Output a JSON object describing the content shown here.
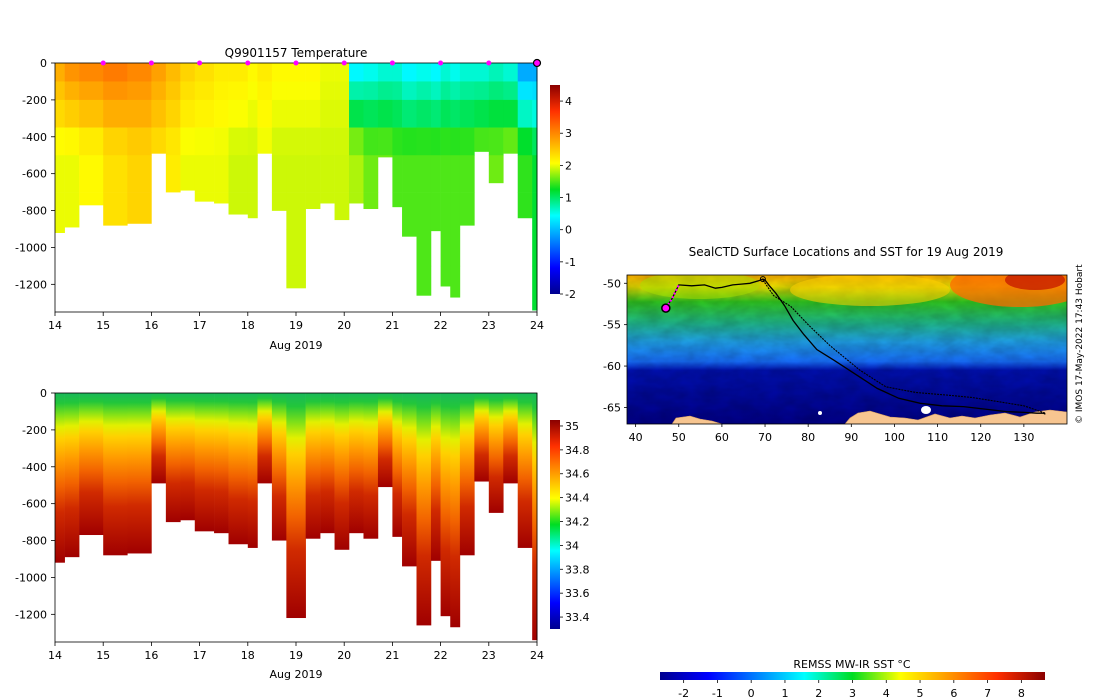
{
  "chart_data": [
    {
      "type": "heatmap",
      "title": "Q9901157  Temperature",
      "xlabel": "Aug 2019",
      "xlim": [
        14,
        24
      ],
      "x_ticks": [
        "14",
        "15",
        "16",
        "17",
        "18",
        "19",
        "20",
        "21",
        "22",
        "23",
        "24"
      ],
      "ylim": [
        -1350,
        0
      ],
      "y_ticks": [
        "0",
        "-200",
        "-400",
        "-600",
        "-800",
        "-1000",
        "-1200"
      ],
      "colorbar_ticks": [
        "4",
        "3",
        "2",
        "1",
        "0",
        "-1",
        "-2"
      ],
      "colorbar_range": [
        -2,
        4.5
      ],
      "surface_markers_x": [
        15,
        16,
        17,
        18,
        19,
        20,
        21,
        22,
        23
      ],
      "profile_x": [
        14.0,
        14.2,
        14.5,
        15.0,
        15.5,
        16.0,
        16.3,
        16.6,
        16.9,
        17.3,
        17.6,
        18.0,
        18.2,
        18.5,
        18.8,
        19.2,
        19.5,
        19.8,
        20.1,
        20.4,
        20.7,
        21.0,
        21.2,
        21.5,
        21.8,
        22.0,
        22.2,
        22.4,
        22.7,
        23.0,
        23.3,
        23.6,
        23.9,
        24.0
      ],
      "profile_max_depth": [
        -920,
        -890,
        -770,
        -880,
        -870,
        -490,
        -700,
        -690,
        -750,
        -760,
        -820,
        -840,
        -490,
        -800,
        -1220,
        -790,
        -760,
        -850,
        -760,
        -790,
        -510,
        -780,
        -940,
        -1260,
        -910,
        -1210,
        -1270,
        -880,
        -480,
        -650,
        -490,
        -840,
        -1340,
        -1340
      ],
      "surface_value": [
        2.7,
        2.9,
        3.0,
        3.1,
        3.0,
        2.8,
        2.6,
        2.4,
        2.3,
        2.2,
        2.2,
        2.1,
        2.2,
        2.1,
        2.1,
        2.1,
        2.0,
        2.0,
        0.4,
        0.5,
        0.6,
        0.6,
        0.4,
        0.5,
        0.4,
        0.6,
        0.5,
        0.6,
        0.6,
        0.7,
        0.6,
        -0.1,
        -0.1,
        -0.1
      ],
      "deep_value": [
        2.0,
        2.0,
        2.1,
        2.3,
        2.4,
        2.3,
        2.2,
        2.0,
        2.0,
        2.0,
        1.9,
        1.9,
        2.0,
        1.9,
        1.9,
        1.9,
        1.9,
        1.9,
        1.8,
        1.6,
        1.6,
        1.5,
        1.5,
        1.5,
        1.5,
        1.5,
        1.5,
        1.5,
        1.6,
        1.6,
        1.7,
        1.4,
        1.2,
        1.2
      ]
    },
    {
      "type": "heatmap",
      "title": "",
      "xlabel": "Aug 2019",
      "xlim": [
        14,
        24
      ],
      "x_ticks": [
        "14",
        "15",
        "16",
        "17",
        "18",
        "19",
        "20",
        "21",
        "22",
        "23",
        "24"
      ],
      "ylim": [
        -1350,
        0
      ],
      "y_ticks": [
        "0",
        "-200",
        "-400",
        "-600",
        "-800",
        "-1000",
        "-1200"
      ],
      "colorbar_ticks": [
        "35",
        "34.8",
        "34.6",
        "34.4",
        "34.2",
        "34",
        "33.8",
        "33.6",
        "33.4"
      ],
      "colorbar_range": [
        33.3,
        35.05
      ]
    },
    {
      "type": "heatmap",
      "title": "SealCTD Surface Locations and SST for 19 Aug 2019",
      "xlim": [
        38,
        140
      ],
      "ylim": [
        -67,
        -49
      ],
      "x_ticks": [
        "40",
        "50",
        "60",
        "70",
        "80",
        "90",
        "100",
        "110",
        "120",
        "130"
      ],
      "y_ticks": [
        "-50",
        "-55",
        "-60",
        "-65"
      ],
      "colorbar_label": "REMSS MW-IR SST °C",
      "colorbar_ticks": [
        "-2",
        "-1",
        "0",
        "1",
        "2",
        "3",
        "4",
        "5",
        "6",
        "7",
        "8"
      ],
      "colorbar_range": [
        -2.7,
        8.7
      ],
      "credit": "© IMOS 17-May-2022 17:43 Hobart",
      "track_lon": [
        47.0,
        48.5,
        50.0,
        53.0,
        56.0,
        58.5,
        60.0,
        62.5,
        64.5,
        66.5,
        68.5,
        69.5,
        70.0,
        71.0,
        72.5,
        74.5,
        76.5,
        79.0,
        82.0,
        86.0,
        91.0,
        96.0,
        101.0,
        106.0,
        111.0,
        116.0,
        121.0,
        126.0,
        130.0,
        133.0,
        134.5,
        135.0
      ],
      "track_lat": [
        -53.0,
        -51.8,
        -50.2,
        -50.3,
        -50.2,
        -50.6,
        -50.5,
        -50.2,
        -50.1,
        -50.0,
        -49.7,
        -49.5,
        -49.6,
        -50.3,
        -51.2,
        -52.7,
        -54.5,
        -56.2,
        -58.0,
        -59.3,
        -61.0,
        -62.7,
        -63.9,
        -64.5,
        -64.8,
        -64.9,
        -65.2,
        -65.5,
        -65.6,
        -65.7,
        -65.7,
        -65.8
      ],
      "deployment_lon": 47.0,
      "deployment_lat": -53.0
    }
  ]
}
